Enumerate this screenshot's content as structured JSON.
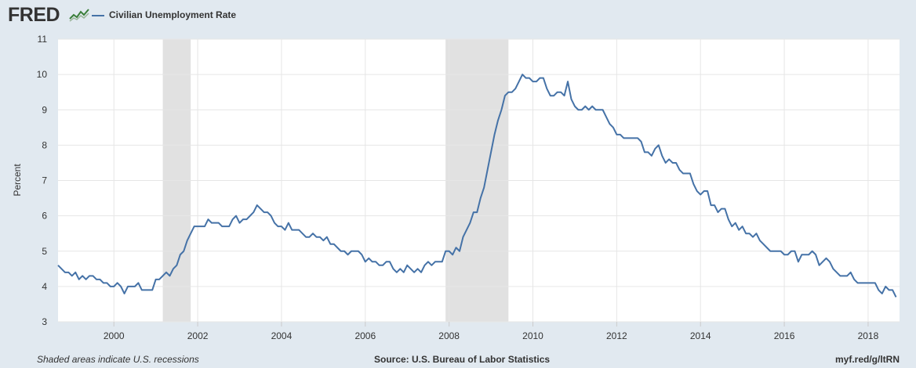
{
  "header": {
    "logo_text": "FRED",
    "logo_icon": "fred-chart-icon",
    "series_label": "Civilian Unemployment Rate"
  },
  "colors": {
    "line": "#4572a7",
    "recession": "#e1e1e1",
    "background": "#e1e9f0",
    "plot": "#ffffff",
    "grid": "#e6e6e6",
    "text": "#333333"
  },
  "chart_data": {
    "type": "line",
    "title": "",
    "xlabel": "",
    "ylabel": "Percent",
    "ylim": [
      3,
      11
    ],
    "xlim": [
      1998.667,
      2018.75
    ],
    "grid": true,
    "x_ticks": [
      2000,
      2002,
      2004,
      2006,
      2008,
      2010,
      2012,
      2014,
      2016,
      2018
    ],
    "x_tick_labels": [
      "2000",
      "2002",
      "2004",
      "2006",
      "2008",
      "2010",
      "2012",
      "2014",
      "2016",
      "2018"
    ],
    "y_ticks": [
      3,
      4,
      5,
      6,
      7,
      8,
      9,
      10,
      11
    ],
    "y_tick_labels": [
      "3",
      "4",
      "5",
      "6",
      "7",
      "8",
      "9",
      "10",
      "11"
    ],
    "recessions": [
      {
        "start": "2001-03",
        "end": "2001-11"
      },
      {
        "start": "2007-12",
        "end": "2009-06"
      }
    ],
    "series": [
      {
        "name": "Civilian Unemployment Rate",
        "start": "1998-09",
        "frequency": "monthly",
        "values": [
          4.6,
          4.5,
          4.4,
          4.4,
          4.3,
          4.4,
          4.2,
          4.3,
          4.2,
          4.3,
          4.3,
          4.2,
          4.2,
          4.1,
          4.1,
          4.0,
          4.0,
          4.1,
          4.0,
          3.8,
          4.0,
          4.0,
          4.0,
          4.1,
          3.9,
          3.9,
          3.9,
          3.9,
          4.2,
          4.2,
          4.3,
          4.4,
          4.3,
          4.5,
          4.6,
          4.9,
          5.0,
          5.3,
          5.5,
          5.7,
          5.7,
          5.7,
          5.7,
          5.9,
          5.8,
          5.8,
          5.8,
          5.7,
          5.7,
          5.7,
          5.9,
          6.0,
          5.8,
          5.9,
          5.9,
          6.0,
          6.1,
          6.3,
          6.2,
          6.1,
          6.1,
          6.0,
          5.8,
          5.7,
          5.7,
          5.6,
          5.8,
          5.6,
          5.6,
          5.6,
          5.5,
          5.4,
          5.4,
          5.5,
          5.4,
          5.4,
          5.3,
          5.4,
          5.2,
          5.2,
          5.1,
          5.0,
          5.0,
          4.9,
          5.0,
          5.0,
          5.0,
          4.9,
          4.7,
          4.8,
          4.7,
          4.7,
          4.6,
          4.6,
          4.7,
          4.7,
          4.5,
          4.4,
          4.5,
          4.4,
          4.6,
          4.5,
          4.4,
          4.5,
          4.4,
          4.6,
          4.7,
          4.6,
          4.7,
          4.7,
          4.7,
          5.0,
          5.0,
          4.9,
          5.1,
          5.0,
          5.4,
          5.6,
          5.8,
          6.1,
          6.1,
          6.5,
          6.8,
          7.3,
          7.8,
          8.3,
          8.7,
          9.0,
          9.4,
          9.5,
          9.5,
          9.6,
          9.8,
          10.0,
          9.9,
          9.9,
          9.8,
          9.8,
          9.9,
          9.9,
          9.6,
          9.4,
          9.4,
          9.5,
          9.5,
          9.4,
          9.8,
          9.3,
          9.1,
          9.0,
          9.0,
          9.1,
          9.0,
          9.1,
          9.0,
          9.0,
          9.0,
          8.8,
          8.6,
          8.5,
          8.3,
          8.3,
          8.2,
          8.2,
          8.2,
          8.2,
          8.2,
          8.1,
          7.8,
          7.8,
          7.7,
          7.9,
          8.0,
          7.7,
          7.5,
          7.6,
          7.5,
          7.5,
          7.3,
          7.2,
          7.2,
          7.2,
          6.9,
          6.7,
          6.6,
          6.7,
          6.7,
          6.3,
          6.3,
          6.1,
          6.2,
          6.2,
          5.9,
          5.7,
          5.8,
          5.6,
          5.7,
          5.5,
          5.5,
          5.4,
          5.5,
          5.3,
          5.2,
          5.1,
          5.0,
          5.0,
          5.0,
          5.0,
          4.9,
          4.9,
          5.0,
          5.0,
          4.7,
          4.9,
          4.9,
          4.9,
          5.0,
          4.9,
          4.6,
          4.7,
          4.8,
          4.7,
          4.5,
          4.4,
          4.3,
          4.3,
          4.3,
          4.4,
          4.2,
          4.1,
          4.1,
          4.1,
          4.1,
          4.1,
          4.1,
          3.9,
          3.8,
          4.0,
          3.9,
          3.9,
          3.7
        ]
      }
    ]
  },
  "footer": {
    "note": "Shaded areas indicate U.S. recessions",
    "source": "Source: U.S. Bureau of Labor Statistics",
    "short_url": "myf.red/g/ltRN"
  }
}
